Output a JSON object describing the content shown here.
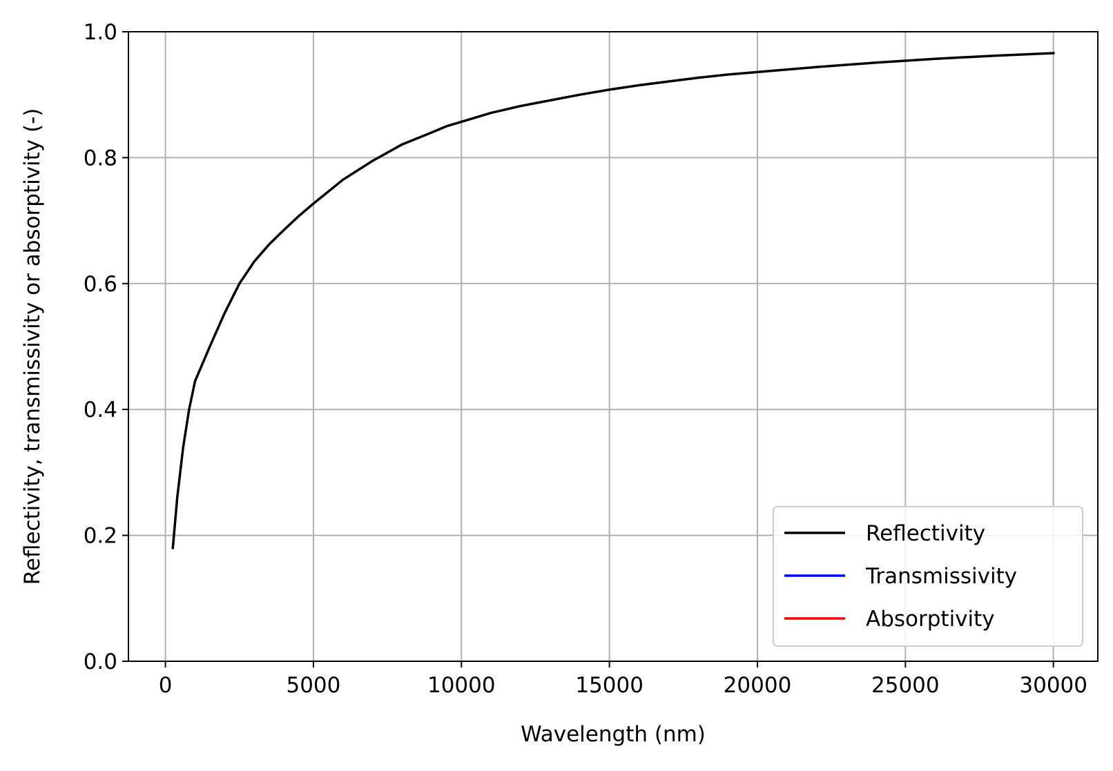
{
  "chart_data": {
    "type": "line",
    "title": "",
    "xlabel": "Wavelength (nm)",
    "ylabel": "Reflectivity, transmissivity or absorptivity (-)",
    "xlim": [
      -1250,
      31500
    ],
    "ylim": [
      0.0,
      1.0
    ],
    "xticks": [
      0,
      5000,
      10000,
      15000,
      20000,
      25000,
      30000
    ],
    "xtick_labels": [
      "0",
      "5000",
      "10000",
      "15000",
      "20000",
      "25000",
      "30000"
    ],
    "yticks": [
      0.0,
      0.2,
      0.4,
      0.6,
      0.8,
      1.0
    ],
    "ytick_labels": [
      "0.0",
      "0.2",
      "0.4",
      "0.6",
      "0.8",
      "1.0"
    ],
    "grid": true,
    "legend_position": "lower-right",
    "series": [
      {
        "name": "Reflectivity",
        "color": "#000000",
        "x": [
          250,
          400,
          600,
          800,
          1000,
          1500,
          2000,
          2500,
          3000,
          3500,
          4000,
          4500,
          5000,
          6000,
          7000,
          8000,
          9000,
          9500,
          10000,
          11000,
          12000,
          13000,
          14000,
          15000,
          16000,
          17000,
          18000,
          19000,
          20000,
          22000,
          24000,
          26000,
          28000,
          30000
        ],
        "y": [
          0.18,
          0.26,
          0.34,
          0.4,
          0.445,
          0.5,
          0.553,
          0.6,
          0.635,
          0.662,
          0.685,
          0.707,
          0.727,
          0.765,
          0.795,
          0.821,
          0.84,
          0.85,
          0.857,
          0.871,
          0.882,
          0.891,
          0.9,
          0.908,
          0.915,
          0.921,
          0.927,
          0.932,
          0.936,
          0.944,
          0.951,
          0.957,
          0.962,
          0.966
        ]
      },
      {
        "name": "Transmissivity",
        "color": "#0000ff",
        "x": [],
        "y": []
      },
      {
        "name": "Absorptivity",
        "color": "#ff0000",
        "x": [],
        "y": []
      }
    ]
  }
}
